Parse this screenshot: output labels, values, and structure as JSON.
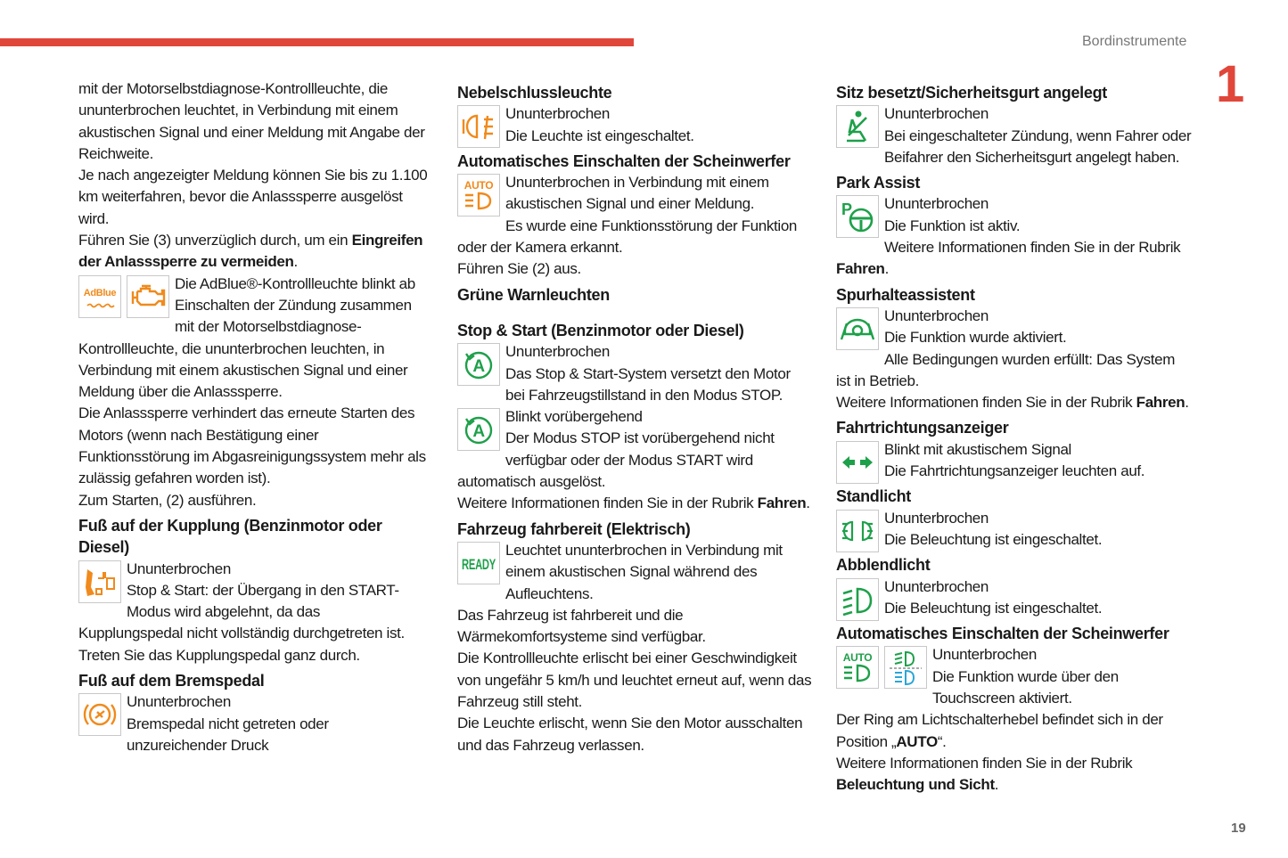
{
  "header": {
    "section": "Bordinstrumente",
    "chapter": "1",
    "page_number": "19"
  },
  "colors": {
    "accent_red": "#e0473a",
    "warning_orange": "#f08a1c",
    "green": "#1ea04a",
    "blue": "#2aa6d8"
  },
  "columns": [
    [
      {
        "type": "p",
        "parts": [
          {
            "t": "mit der Motorselbstdiagnose-Kontrollleuchte, die ununterbrochen leuchtet, in Verbindung mit einem akustischen Signal und einer Meldung mit Angabe der Reichweite."
          }
        ]
      },
      {
        "type": "p",
        "parts": [
          {
            "t": "Je nach angezeigter Meldung können Sie bis zu 1.100 km weiterfahren, bevor die Anlasssperre ausgelöst wird."
          }
        ]
      },
      {
        "type": "p",
        "parts": [
          {
            "t": "Führen Sie (3) unverzüglich durch, um ein "
          },
          {
            "t": "Eingreifen der Anlasssperre zu vermeiden",
            "b": true
          },
          {
            "t": "."
          }
        ]
      },
      {
        "type": "p",
        "icons": [
          "adblue-icon",
          "engine-icon"
        ],
        "parts": [
          {
            "t": "Die AdBlue®-Kontrollleuchte blinkt ab Einschalten der Zündung zusammen mit der Motorselbstdiagnose-Kontrollleuchte, die ununterbrochen leuchten, in Verbindung mit einem akustischen Signal und einer Meldung über die Anlasssperre."
          }
        ]
      },
      {
        "type": "p",
        "parts": [
          {
            "t": "Die Anlasssperre verhindert das erneute Starten des Motors (wenn nach Bestätigung einer Funktionsstörung im Abgasreinigungssystem mehr als zulässig gefahren worden ist)."
          }
        ]
      },
      {
        "type": "p",
        "parts": [
          {
            "t": "Zum Starten, (2) ausführen."
          }
        ]
      },
      {
        "type": "h",
        "text": "Fuß auf der Kupplung (Benzinmotor oder Diesel)"
      },
      {
        "type": "p",
        "icons": [
          "clutch-pedal-icon"
        ],
        "parts": [
          {
            "t": "Ununterbrochen"
          },
          {
            "br": true
          },
          {
            "t": "Stop & Start: der Übergang in den START-Modus wird abgelehnt, da das Kupplungspedal nicht vollständig durchgetreten ist."
          }
        ]
      },
      {
        "type": "p",
        "parts": [
          {
            "t": "Treten Sie das Kupplungspedal ganz durch."
          }
        ]
      },
      {
        "type": "h",
        "text": "Fuß auf dem Bremspedal"
      },
      {
        "type": "p",
        "icons": [
          "brake-pedal-icon"
        ],
        "parts": [
          {
            "t": "Ununterbrochen"
          },
          {
            "br": true
          },
          {
            "t": "Bremspedal nicht getreten oder unzureichender Druck"
          }
        ]
      }
    ],
    [
      {
        "type": "h",
        "text": "Nebelschlussleuchte"
      },
      {
        "type": "p",
        "icons": [
          "rear-fog-light-icon"
        ],
        "parts": [
          {
            "t": "Ununterbrochen"
          },
          {
            "br": true
          },
          {
            "t": "Die Leuchte ist eingeschaltet."
          }
        ]
      },
      {
        "type": "h",
        "text": "Automatisches Einschalten der Scheinwerfer"
      },
      {
        "type": "p",
        "icons": [
          "auto-headlamp-orange-icon"
        ],
        "parts": [
          {
            "t": "Ununterbrochen in Verbindung mit einem akustischen Signal und einer Meldung."
          }
        ]
      },
      {
        "type": "p",
        "parts": [
          {
            "t": "Es wurde eine Funktionsstörung der Funktion oder der Kamera erkannt."
          }
        ]
      },
      {
        "type": "p",
        "parts": [
          {
            "t": "Führen Sie (2) aus."
          }
        ]
      },
      {
        "type": "h",
        "text": "Grüne Warnleuchten",
        "gapAfter": true
      },
      {
        "type": "h",
        "text": "Stop & Start (Benzinmotor oder Diesel)"
      },
      {
        "type": "p",
        "icons": [
          "stop-start-icon"
        ],
        "parts": [
          {
            "t": "Ununterbrochen"
          },
          {
            "br": true
          },
          {
            "t": "Das Stop & Start-System versetzt den Motor bei Fahrzeugstillstand in den Modus STOP."
          }
        ]
      },
      {
        "type": "p",
        "icons": [
          "stop-start-icon"
        ],
        "parts": [
          {
            "t": "Blinkt vorübergehend"
          },
          {
            "br": true
          },
          {
            "t": "Der Modus STOP ist vorübergehend nicht verfügbar oder der Modus START wird automatisch ausgelöst."
          }
        ]
      },
      {
        "type": "p",
        "parts": [
          {
            "t": "Weitere Informationen finden Sie in der Rubrik "
          },
          {
            "t": "Fahren",
            "b": true
          },
          {
            "t": "."
          }
        ]
      },
      {
        "type": "h",
        "text": "Fahrzeug fahrbereit (Elektrisch)"
      },
      {
        "type": "p",
        "icons": [
          "ready-icon"
        ],
        "parts": [
          {
            "t": "Leuchtet ununterbrochen in Verbindung mit einem akustischen Signal während des Aufleuchtens."
          }
        ]
      },
      {
        "type": "p",
        "parts": [
          {
            "t": "Das Fahrzeug ist fahrbereit und die Wärmekomfortsysteme sind verfügbar."
          }
        ]
      },
      {
        "type": "p",
        "parts": [
          {
            "t": "Die Kontrollleuchte erlischt bei einer Geschwindigkeit von ungefähr 5 km/h und leuchtet erneut auf, wenn das Fahrzeug still steht."
          }
        ]
      },
      {
        "type": "p",
        "parts": [
          {
            "t": "Die Leuchte erlischt, wenn Sie den Motor ausschalten und das Fahrzeug verlassen."
          }
        ]
      }
    ],
    [
      {
        "type": "h",
        "text": "Sitz besetzt/Sicherheitsgurt angelegt"
      },
      {
        "type": "p",
        "icons": [
          "seatbelt-icon"
        ],
        "parts": [
          {
            "t": "Ununterbrochen"
          },
          {
            "br": true
          },
          {
            "t": "Bei eingeschalteter Zündung, wenn Fahrer oder Beifahrer den Sicherheitsgurt angelegt haben."
          }
        ]
      },
      {
        "type": "h",
        "text": "Park Assist"
      },
      {
        "type": "p",
        "icons": [
          "park-assist-icon"
        ],
        "parts": [
          {
            "t": "Ununterbrochen"
          },
          {
            "br": true
          },
          {
            "t": "Die Funktion ist aktiv."
          }
        ]
      },
      {
        "type": "p",
        "parts": [
          {
            "t": "Weitere Informationen finden Sie in der Rubrik "
          },
          {
            "t": "Fahren",
            "b": true
          },
          {
            "t": "."
          }
        ]
      },
      {
        "type": "h",
        "text": "Spurhalteassistent"
      },
      {
        "type": "p",
        "icons": [
          "lane-keeping-icon"
        ],
        "parts": [
          {
            "t": "Ununterbrochen"
          },
          {
            "br": true
          },
          {
            "t": "Die Funktion wurde aktiviert."
          }
        ]
      },
      {
        "type": "p",
        "parts": [
          {
            "t": "Alle Bedingungen wurden erfüllt: Das System ist in Betrieb."
          }
        ]
      },
      {
        "type": "p",
        "parts": [
          {
            "t": "Weitere Informationen finden Sie in der Rubrik "
          },
          {
            "t": "Fahren",
            "b": true
          },
          {
            "t": "."
          }
        ]
      },
      {
        "type": "h",
        "text": "Fahrtrichtungsanzeiger"
      },
      {
        "type": "p",
        "icons": [
          "turn-signal-icon"
        ],
        "parts": [
          {
            "t": "Blinkt mit akustischem Signal"
          },
          {
            "br": true
          },
          {
            "t": "Die Fahrtrichtungsanzeiger leuchten auf."
          }
        ]
      },
      {
        "type": "h",
        "text": "Standlicht"
      },
      {
        "type": "p",
        "icons": [
          "sidelights-icon"
        ],
        "parts": [
          {
            "t": "Ununterbrochen"
          },
          {
            "br": true
          },
          {
            "t": "Die Beleuchtung ist eingeschaltet."
          }
        ]
      },
      {
        "type": "h",
        "text": "Abblendlicht"
      },
      {
        "type": "p",
        "icons": [
          "dipped-beam-icon"
        ],
        "parts": [
          {
            "t": "Ununterbrochen"
          },
          {
            "br": true
          },
          {
            "t": "Die Beleuchtung ist eingeschaltet."
          }
        ]
      },
      {
        "type": "h",
        "text": "Automatisches Einschalten der Scheinwerfer"
      },
      {
        "type": "p",
        "icons": [
          "auto-headlamp-green-icon",
          "auto-beam-touchscreen-icon"
        ],
        "parts": [
          {
            "t": "Ununterbrochen"
          },
          {
            "br": true
          },
          {
            "t": "Die Funktion wurde über den Touchscreen aktiviert."
          }
        ]
      },
      {
        "type": "p",
        "parts": [
          {
            "t": "Der Ring am Lichtschalterhebel befindet sich in der Position „"
          },
          {
            "t": "AUTO",
            "b": true
          },
          {
            "t": "“."
          }
        ]
      },
      {
        "type": "p",
        "parts": [
          {
            "t": "Weitere Informationen finden Sie in der Rubrik "
          },
          {
            "t": "Beleuchtung und Sicht",
            "b": true
          },
          {
            "t": "."
          }
        ]
      }
    ]
  ]
}
